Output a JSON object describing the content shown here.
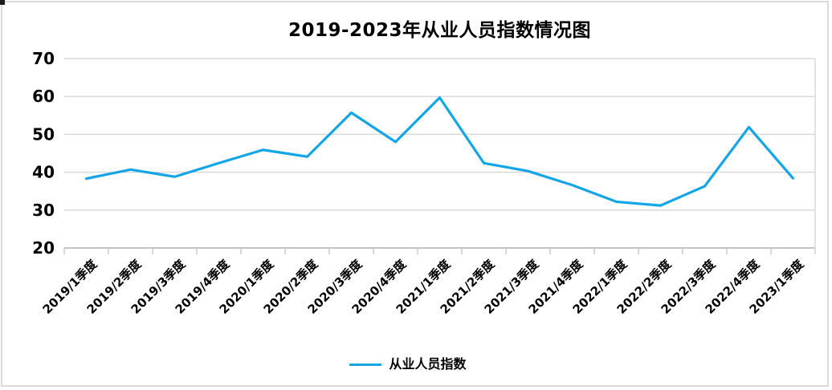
{
  "window": {
    "background": "#ffffff",
    "frame_border_color": "#d9d9d9"
  },
  "colors": {
    "line": "#14a5e6",
    "gridline": "#d9d9d9",
    "axis_line": "#c3c3c3",
    "tick": "#c9c9c9",
    "text": "#000000",
    "background": "#ffffff"
  },
  "chart_data": {
    "type": "line",
    "title": "2019-2023年从业人员指数情况图",
    "categories": [
      "2019/1季度",
      "2019/2季度",
      "2019/3季度",
      "2019/4季度",
      "2020/1季度",
      "2020/2季度",
      "2020/3季度",
      "2020/4季度",
      "2021/1季度",
      "2021/2季度",
      "2021/3季度",
      "2021/4季度",
      "2022/1季度",
      "2022/2季度",
      "2022/3季度",
      "2022/4季度",
      "2023/1季度"
    ],
    "series": [
      {
        "name": "从业人员指数",
        "color": "#14a5e6",
        "values": [
          38.3,
          40.7,
          38.8,
          42.4,
          45.9,
          44.1,
          55.7,
          48.0,
          59.7,
          42.4,
          40.3,
          36.6,
          32.2,
          31.2,
          36.3,
          51.9,
          38.4
        ]
      }
    ],
    "xlabel": "",
    "ylabel": "",
    "ylim": [
      20,
      70
    ],
    "yticks": [
      20,
      30,
      40,
      50,
      60,
      70
    ],
    "x_tick_label_rotation_deg": 45,
    "grid": "horizontal-only",
    "legend_position": "bottom"
  },
  "legend": {
    "label": "从业人员指数"
  }
}
